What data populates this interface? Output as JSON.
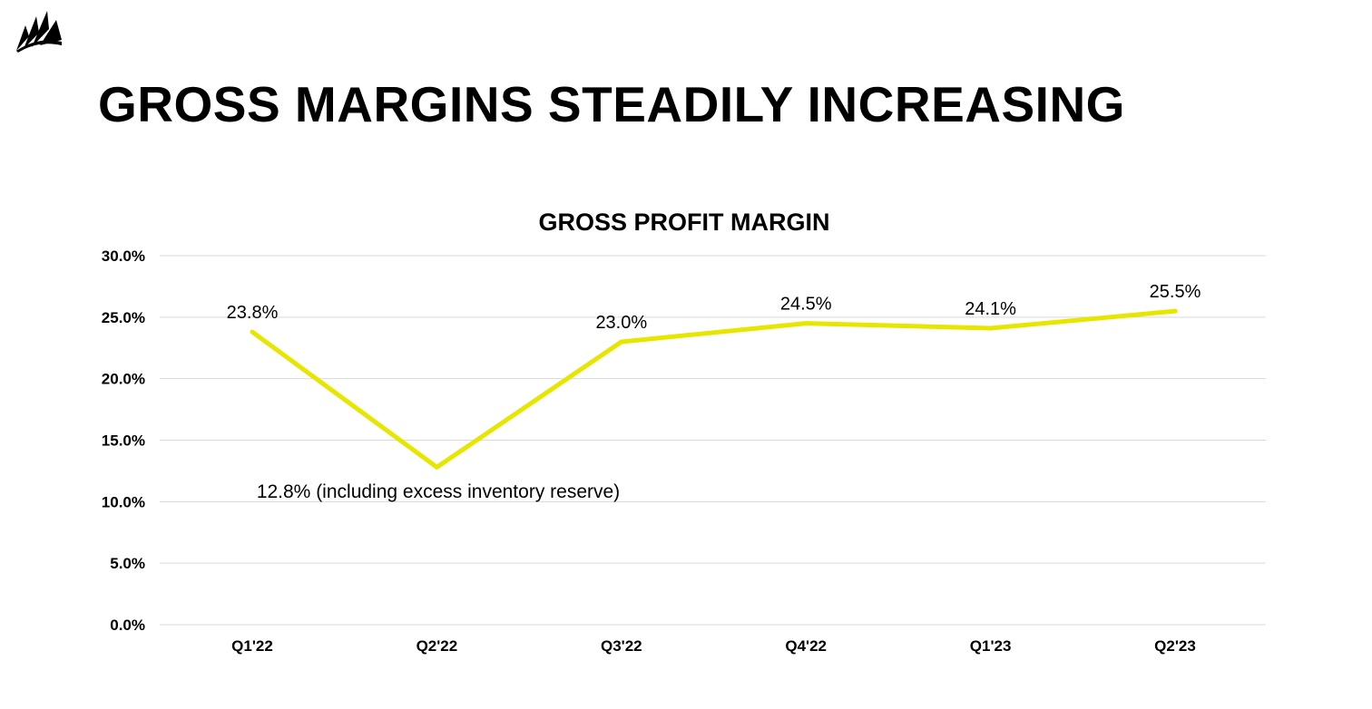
{
  "slide": {
    "title": "GROSS MARGINS STEADILY INCREASING",
    "logo_icon": "corsair-sails-logo-icon"
  },
  "colors": {
    "line": "#E6E600",
    "gridline": "#D9D9D9",
    "text": "#000000",
    "background": "#FFFFFF"
  },
  "chart_data": {
    "type": "line",
    "title": "GROSS PROFIT MARGIN",
    "xlabel": "",
    "ylabel": "",
    "categories": [
      "Q1'22",
      "Q2'22",
      "Q3'22",
      "Q4'22",
      "Q1'23",
      "Q2'23"
    ],
    "series": [
      {
        "values": [
          23.8,
          12.8,
          23.0,
          24.5,
          24.1,
          25.5
        ],
        "data_labels": [
          "23.8%",
          "",
          "23.0%",
          "24.5%",
          "24.1%",
          "25.5%"
        ]
      }
    ],
    "annotation": "12.8% (including excess inventory reserve)",
    "ylim": [
      0,
      30
    ],
    "yticks": [
      "0.0%",
      "5.0%",
      "10.0%",
      "15.0%",
      "20.0%",
      "25.0%",
      "30.0%"
    ],
    "grid": true,
    "legend": "none"
  }
}
